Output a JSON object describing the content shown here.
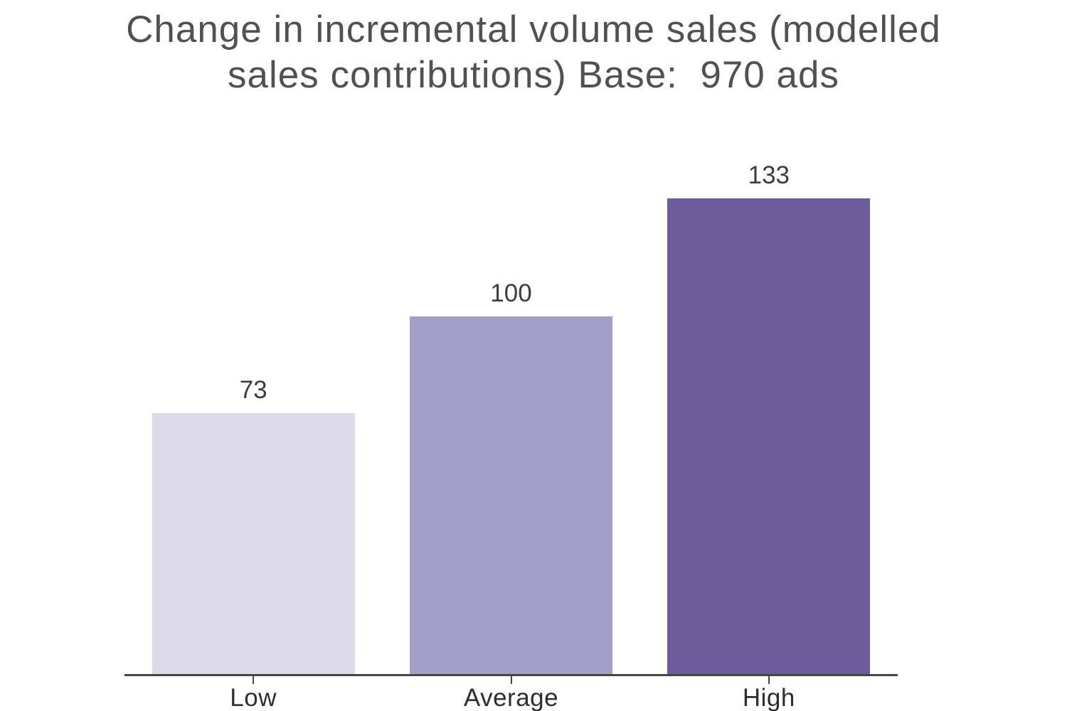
{
  "page": {
    "background": "#ffffff"
  },
  "title": {
    "full": "Change in incremental volume sales (modelled sales contributions) Base:  970 ads",
    "line1": "Change in incremental volume sales (modelled",
    "line2": "sales contributions) Base:  970 ads"
  },
  "chart_data": {
    "type": "bar",
    "title": "Change in incremental volume sales (modelled sales contributions) Base:  970 ads",
    "categories": [
      "Low",
      "Average",
      "High"
    ],
    "values": [
      73,
      100,
      133
    ],
    "value_labels": [
      "73",
      "100",
      "133"
    ],
    "bar_colors": [
      "#dbdae6",
      "#a29ec7",
      "#6c5b9d"
    ],
    "xlabel": "",
    "ylabel": "",
    "ylim": [
      0,
      140
    ],
    "grid": false,
    "legend": false,
    "axis_color": "#454545",
    "title_color": "#515151",
    "label_color": "#3d3d3d"
  }
}
